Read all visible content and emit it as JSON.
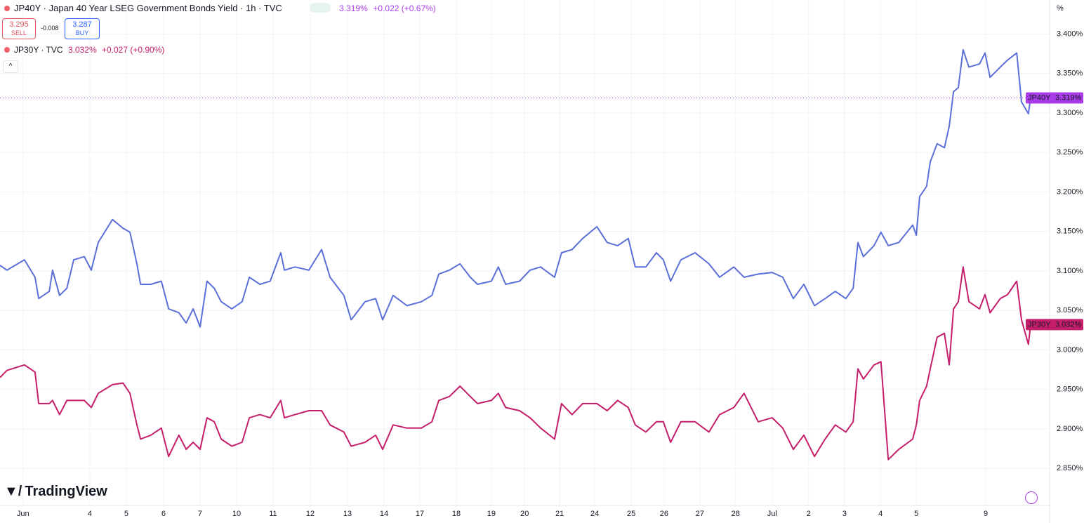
{
  "header": {
    "title": "JP40Y · Japan 40 Year LSEG Government Bonds Yield · 1h · TVC",
    "price": "3.319%",
    "change": "+0.022 (+0.67%)",
    "sell": "3.295",
    "sell_label": "SELL",
    "spread": "-0.008",
    "buy": "3.287",
    "buy_label": "BUY",
    "compare": "JP30Y · TVC",
    "compare_price": "3.032%",
    "compare_change": "+0.027 (+0.90%)",
    "unit": "%",
    "brand": "TradingView"
  },
  "chart_data": {
    "type": "line",
    "x": [
      0,
      0.19,
      0.67,
      0.96,
      1.06,
      1.35,
      1.44,
      1.63,
      1.83,
      2.02,
      2.31,
      2.5,
      2.69,
      3.08,
      3.37,
      3.56,
      3.75,
      3.85,
      4.13,
      4.42,
      4.62,
      4.9,
      5.1,
      5.29,
      5.48,
      5.67,
      5.87,
      6.06,
      6.35,
      6.63,
      6.83,
      7.12,
      7.4,
      7.69,
      7.79,
      8.08,
      8.46,
      8.81,
      9.04,
      9.42,
      9.62,
      10,
      10.29,
      10.48,
      10.77,
      11.15,
      11.54,
      11.83,
      12.02,
      12.31,
      12.6,
      12.88,
      13.08,
      13.46,
      13.65,
      13.85,
      14.23,
      14.52,
      14.81,
      15.19,
      15.38,
      15.67,
      15.96,
      16.35,
      16.63,
      16.92,
      17.21,
      17.4,
      17.69,
      17.98,
      18.17,
      18.37,
      18.65,
      19.04,
      19.42,
      19.71,
      20.1,
      20.38,
      20.77,
      21.15,
      21.44,
      21.73,
      22.02,
      22.31,
      22.6,
      22.88,
      23.17,
      23.37,
      23.5,
      23.65,
      23.94,
      24.13,
      24.33,
      24.62,
      25,
      25.1,
      25.19,
      25.38,
      25.48,
      25.67,
      25.87,
      26,
      26.12,
      26.25,
      26.38,
      26.54,
      26.83,
      26.98,
      27.12,
      27.4,
      27.6,
      27.85,
      27.98,
      28.17,
      28.23
    ],
    "series": [
      {
        "name": "JP40Y",
        "color": "#5b6fd8",
        "label_color": "#a93ce8",
        "last_label": "3.319%",
        "values": [
          3.107,
          3.101,
          3.114,
          3.092,
          3.065,
          3.074,
          3.101,
          3.069,
          3.078,
          3.114,
          3.118,
          3.101,
          3.136,
          3.165,
          3.154,
          3.149,
          3.109,
          3.083,
          3.083,
          3.087,
          3.052,
          3.047,
          3.034,
          3.052,
          3.029,
          3.087,
          3.078,
          3.061,
          3.052,
          3.061,
          3.092,
          3.083,
          3.087,
          3.123,
          3.101,
          3.105,
          3.101,
          3.127,
          3.092,
          3.069,
          3.038,
          3.061,
          3.065,
          3.038,
          3.069,
          3.056,
          3.061,
          3.069,
          3.096,
          3.101,
          3.109,
          3.092,
          3.083,
          3.087,
          3.105,
          3.083,
          3.087,
          3.101,
          3.105,
          3.092,
          3.123,
          3.127,
          3.141,
          3.156,
          3.136,
          3.132,
          3.141,
          3.105,
          3.105,
          3.123,
          3.114,
          3.087,
          3.114,
          3.123,
          3.109,
          3.092,
          3.105,
          3.092,
          3.096,
          3.098,
          3.092,
          3.065,
          3.083,
          3.056,
          3.065,
          3.074,
          3.065,
          3.078,
          3.136,
          3.118,
          3.132,
          3.149,
          3.132,
          3.136,
          3.158,
          3.145,
          3.194,
          3.207,
          3.238,
          3.261,
          3.256,
          3.283,
          3.327,
          3.332,
          3.38,
          3.358,
          3.362,
          3.376,
          3.345,
          3.358,
          3.367,
          3.376,
          3.314,
          3.299,
          3.319
        ]
      },
      {
        "name": "JP30Y",
        "color": "#c41e6a",
        "label_color": "#c41e6a",
        "last_label": "3.032%",
        "values": [
          2.965,
          2.974,
          2.981,
          2.972,
          2.932,
          2.932,
          2.936,
          2.918,
          2.936,
          2.936,
          2.936,
          2.927,
          2.945,
          2.956,
          2.958,
          2.945,
          2.905,
          2.887,
          2.892,
          2.901,
          2.865,
          2.892,
          2.874,
          2.883,
          2.874,
          2.914,
          2.909,
          2.887,
          2.878,
          2.883,
          2.914,
          2.918,
          2.914,
          2.936,
          2.914,
          2.918,
          2.923,
          2.923,
          2.905,
          2.896,
          2.878,
          2.883,
          2.892,
          2.874,
          2.905,
          2.901,
          2.901,
          2.909,
          2.936,
          2.941,
          2.954,
          2.941,
          2.932,
          2.936,
          2.945,
          2.927,
          2.923,
          2.914,
          2.901,
          2.887,
          2.932,
          2.918,
          2.932,
          2.932,
          2.923,
          2.936,
          2.927,
          2.905,
          2.896,
          2.909,
          2.909,
          2.883,
          2.909,
          2.909,
          2.896,
          2.918,
          2.927,
          2.945,
          2.909,
          2.914,
          2.901,
          2.874,
          2.892,
          2.865,
          2.887,
          2.905,
          2.896,
          2.909,
          2.976,
          2.963,
          2.981,
          2.985,
          2.861,
          2.874,
          2.887,
          2.905,
          2.936,
          2.954,
          2.976,
          3.016,
          3.021,
          2.981,
          3.052,
          3.061,
          3.105,
          3.061,
          3.052,
          3.07,
          3.047,
          3.065,
          3.07,
          3.087,
          3.038,
          3.007,
          3.032
        ]
      }
    ],
    "xlim": [
      0,
      28.75
    ],
    "xticks": [
      {
        "value": 0.63,
        "label": "Jun"
      },
      {
        "value": 2.46,
        "label": "4"
      },
      {
        "value": 3.46,
        "label": "5"
      },
      {
        "value": 4.48,
        "label": "6"
      },
      {
        "value": 5.48,
        "label": "7"
      },
      {
        "value": 6.48,
        "label": "10"
      },
      {
        "value": 7.48,
        "label": "11"
      },
      {
        "value": 8.5,
        "label": "12"
      },
      {
        "value": 9.52,
        "label": "13"
      },
      {
        "value": 10.52,
        "label": "14"
      },
      {
        "value": 11.5,
        "label": "17"
      },
      {
        "value": 12.5,
        "label": "18"
      },
      {
        "value": 13.46,
        "label": "19"
      },
      {
        "value": 14.37,
        "label": "20"
      },
      {
        "value": 15.33,
        "label": "21"
      },
      {
        "value": 16.29,
        "label": "24"
      },
      {
        "value": 17.29,
        "label": "25"
      },
      {
        "value": 18.19,
        "label": "26"
      },
      {
        "value": 19.17,
        "label": "27"
      },
      {
        "value": 20.15,
        "label": "28"
      },
      {
        "value": 21.15,
        "label": "Jul"
      },
      {
        "value": 22.15,
        "label": "2"
      },
      {
        "value": 23.13,
        "label": "3"
      },
      {
        "value": 24.12,
        "label": "4"
      },
      {
        "value": 25.1,
        "label": "5"
      },
      {
        "value": 27.0,
        "label": "9"
      }
    ],
    "ylim": [
      2.803,
      3.443
    ],
    "yticks": [
      {
        "value": 2.85,
        "label": "2.850%"
      },
      {
        "value": 2.9,
        "label": "2.900%"
      },
      {
        "value": 2.95,
        "label": "2.950%"
      },
      {
        "value": 3.0,
        "label": "3.000%"
      },
      {
        "value": 3.05,
        "label": "3.050%"
      },
      {
        "value": 3.1,
        "label": "3.100%"
      },
      {
        "value": 3.15,
        "label": "3.150%"
      },
      {
        "value": 3.2,
        "label": "3.200%"
      },
      {
        "value": 3.25,
        "label": "3.250%"
      },
      {
        "value": 3.3,
        "label": "3.300%"
      },
      {
        "value": 3.35,
        "label": "3.350%"
      },
      {
        "value": 3.4,
        "label": "3.400%"
      }
    ],
    "grid": true
  }
}
